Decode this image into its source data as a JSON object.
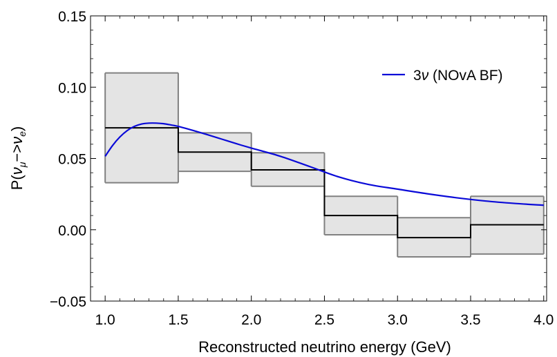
{
  "chart_data": {
    "type": "line",
    "xlabel": "Reconstructed neutrino energy (GeV)",
    "ylabel": "P(νμ→νe)",
    "ylabel_parts": {
      "pre": "P(",
      "nu1": "ν",
      "sub1": "μ",
      "arrow": "−>",
      "nu2": "ν",
      "sub2": "e",
      "post": ")"
    },
    "xlim": [
      0.9,
      4.02
    ],
    "ylim": [
      -0.05,
      0.15
    ],
    "xticks": [
      1.0,
      1.5,
      2.0,
      2.5,
      3.0,
      3.5,
      4.0
    ],
    "xtick_labels": [
      "1.0",
      "1.5",
      "2.0",
      "2.5",
      "3.0",
      "3.5",
      "4.0"
    ],
    "yticks": [
      -0.05,
      0.0,
      0.05,
      0.1,
      0.15
    ],
    "ytick_labels": [
      "−0.05",
      "0.00",
      "0.05",
      "0.10",
      "0.15"
    ],
    "bins": [
      {
        "x0": 1.0,
        "x1": 1.5,
        "central": 0.0715,
        "low": 0.033,
        "high": 0.11
      },
      {
        "x0": 1.5,
        "x1": 2.0,
        "central": 0.0545,
        "low": 0.041,
        "high": 0.068
      },
      {
        "x0": 2.0,
        "x1": 2.5,
        "central": 0.042,
        "low": 0.0305,
        "high": 0.054
      },
      {
        "x0": 2.5,
        "x1": 3.0,
        "central": 0.01,
        "low": -0.0035,
        "high": 0.0235
      },
      {
        "x0": 3.0,
        "x1": 3.5,
        "central": -0.0055,
        "low": -0.019,
        "high": 0.0085
      },
      {
        "x0": 3.5,
        "x1": 4.0,
        "central": 0.0035,
        "low": -0.017,
        "high": 0.0235
      }
    ],
    "series": [
      {
        "name": "3ν (NOvA BF)",
        "label_parts": {
          "main": "3",
          "nu": "ν",
          "rest": " (NOvA BF)"
        },
        "color": "#0a0ad8",
        "x": [
          1.0,
          1.05,
          1.1,
          1.15,
          1.2,
          1.25,
          1.3,
          1.35,
          1.4,
          1.45,
          1.5,
          1.6,
          1.7,
          1.8,
          1.9,
          2.0,
          2.2,
          2.4,
          2.6,
          2.8,
          3.0,
          3.2,
          3.4,
          3.6,
          3.8,
          4.0
        ],
        "y": [
          0.0515,
          0.059,
          0.065,
          0.0695,
          0.0725,
          0.0742,
          0.0748,
          0.0748,
          0.0744,
          0.0735,
          0.0725,
          0.0697,
          0.0667,
          0.0635,
          0.0603,
          0.0573,
          0.0515,
          0.0443,
          0.037,
          0.0318,
          0.0285,
          0.0253,
          0.0225,
          0.0202,
          0.0185,
          0.0172
        ]
      }
    ],
    "legend_position": "top-right",
    "grid": false,
    "colors": {
      "band_fill": "#e4e4e4",
      "band_edge": "#808080",
      "central": "#000000",
      "curve": "#0a0ad8"
    }
  }
}
